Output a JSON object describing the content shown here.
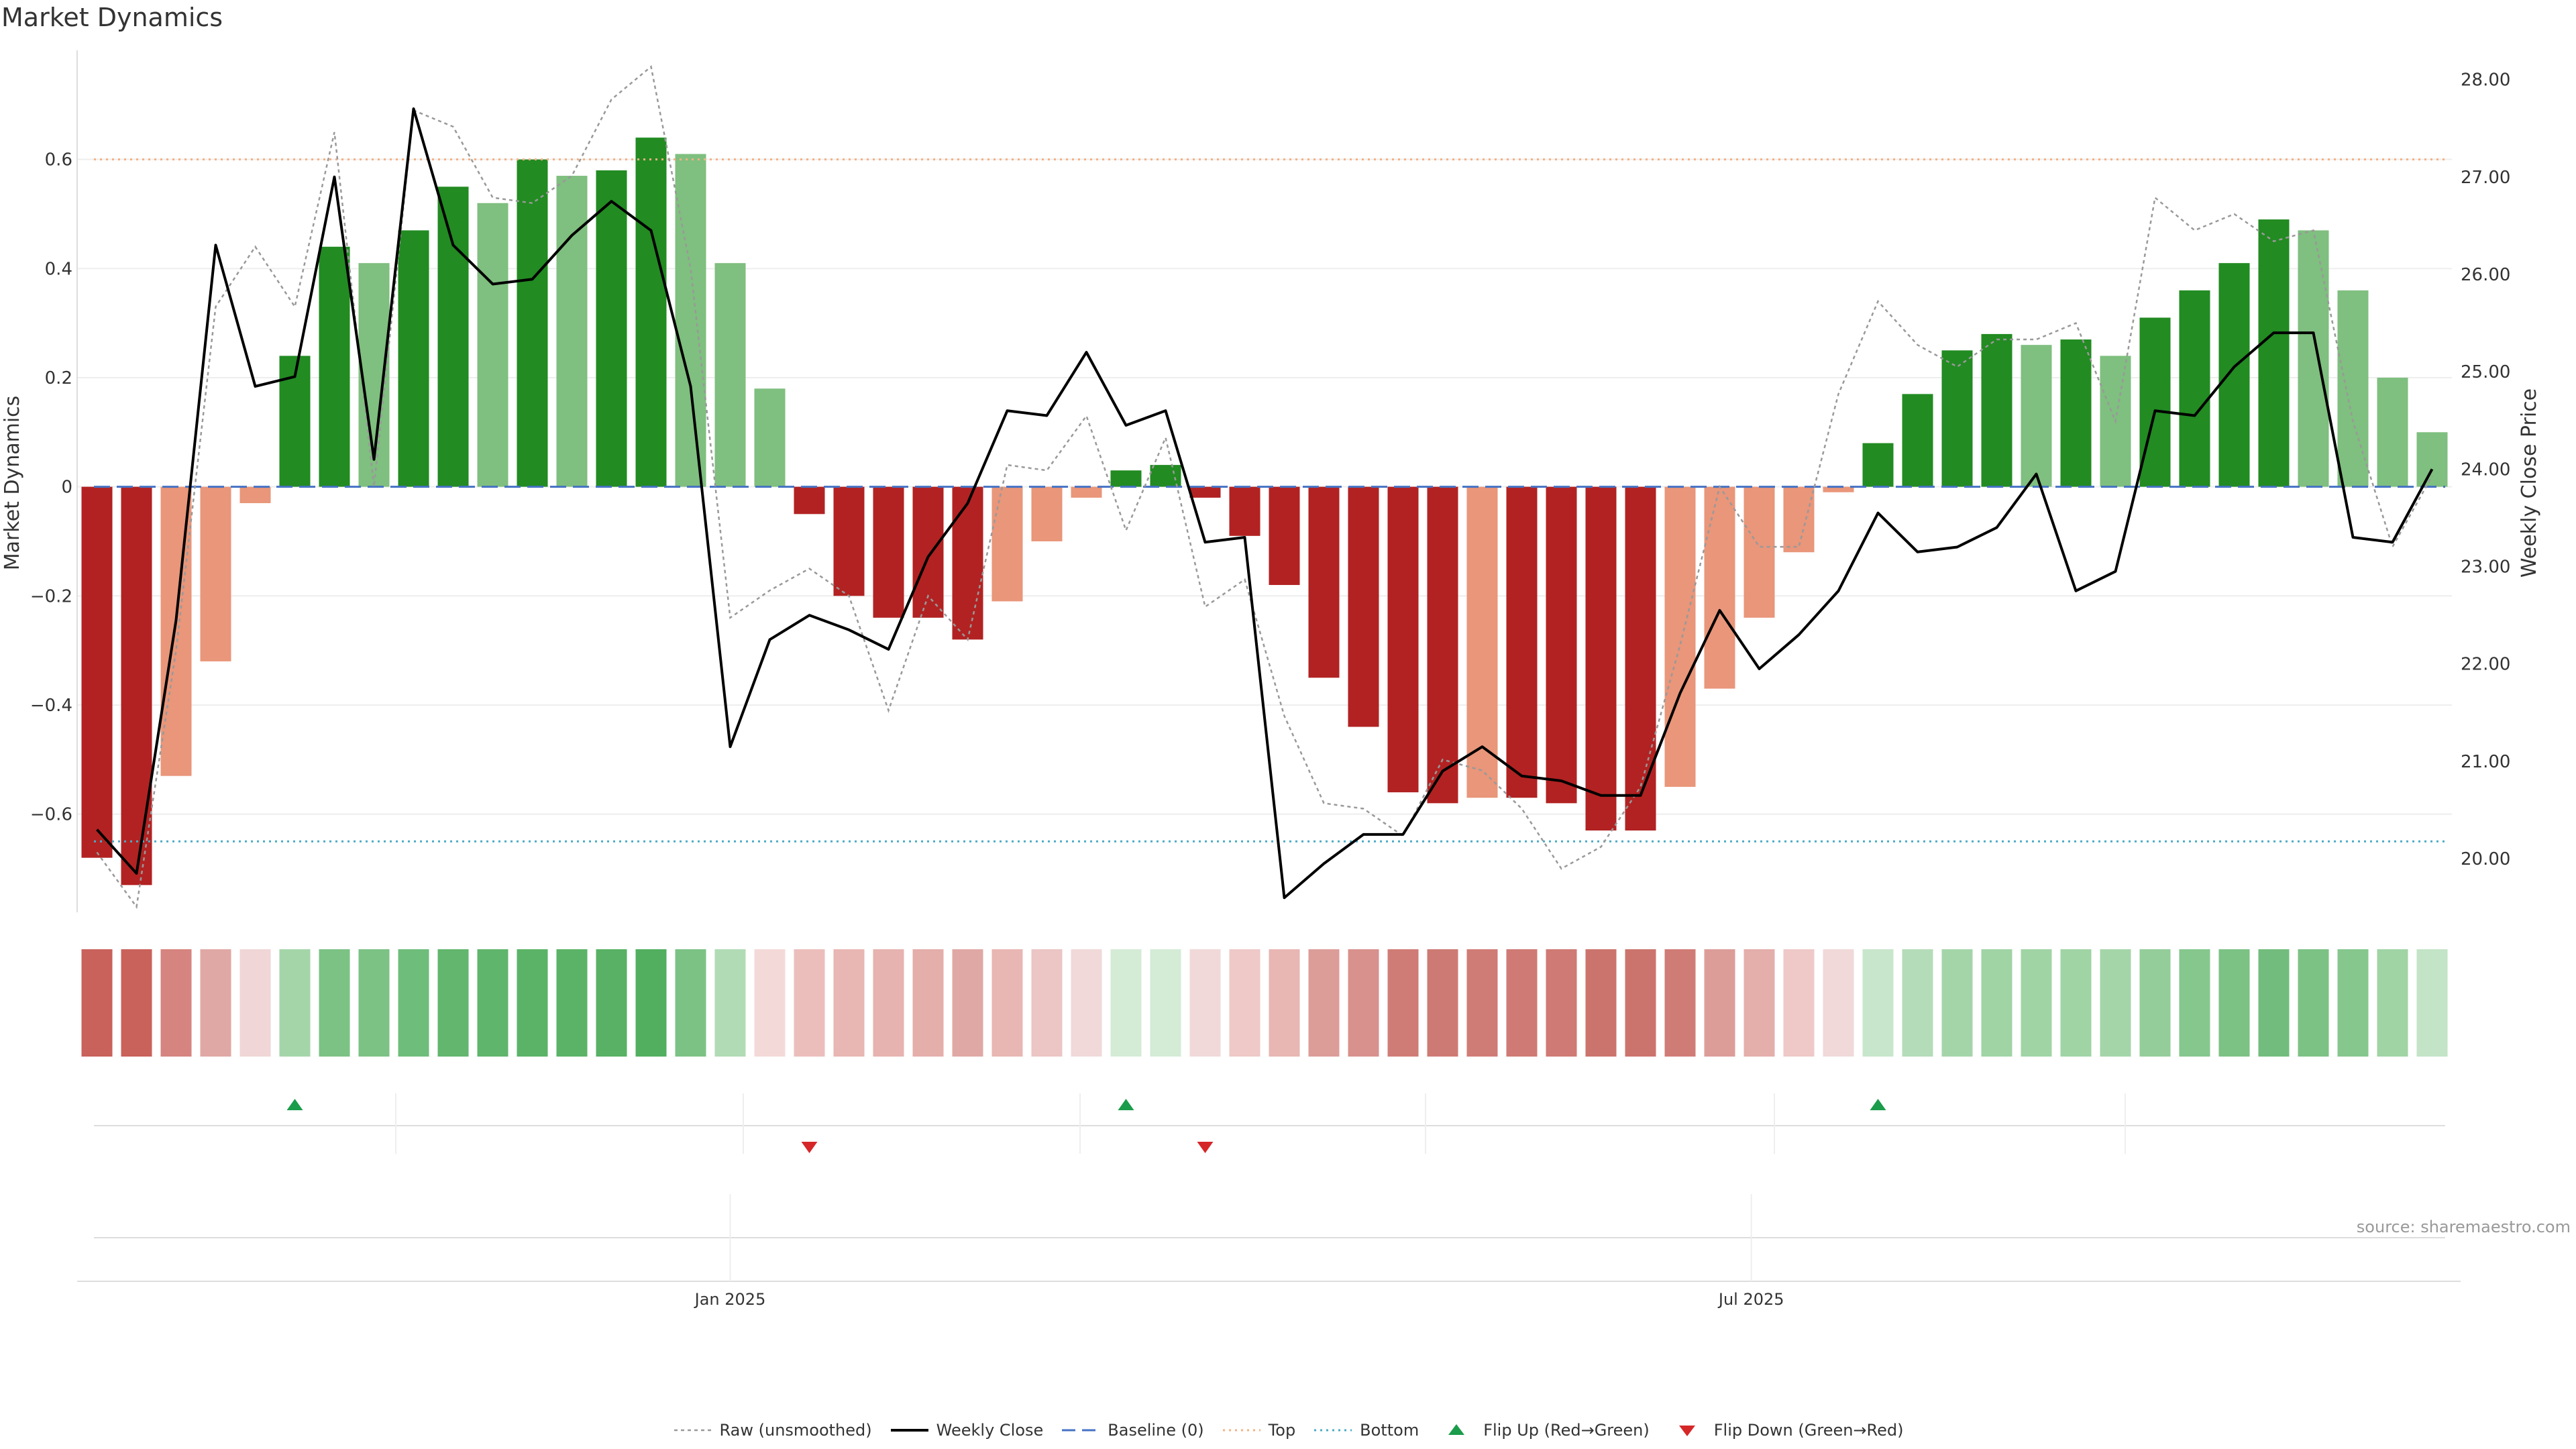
{
  "chart_data": {
    "type": "bar",
    "title": "Market Dynamics",
    "ylabel": "Market Dynamics",
    "y2label": "Weekly Close Price",
    "source": "source: sharemaestro.com",
    "ylim": [
      -0.78,
      0.8
    ],
    "y2lim": [
      19.45,
      28.3
    ],
    "yticks": [
      -0.6,
      -0.4,
      -0.2,
      0,
      0.2,
      0.4,
      0.6
    ],
    "ytick_labels": [
      "−0.6",
      "−0.4",
      "−0.2",
      "0",
      "0.2",
      "0.4",
      "0.6"
    ],
    "y2ticks": [
      20,
      21,
      22,
      23,
      24,
      25,
      26,
      27,
      28
    ],
    "y2tick_labels": [
      "20.00",
      "21.00",
      "22.00",
      "23.00",
      "24.00",
      "25.00",
      "26.00",
      "27.00",
      "28.00"
    ],
    "xtick_labels": [
      {
        "label": "Jan 2025",
        "week": 16.5
      },
      {
        "label": "Jul 2025",
        "week": 42.3
      }
    ],
    "top_level": 0.6,
    "bottom_level": -0.65,
    "baseline": 0,
    "weeks": 60,
    "bar_values": [
      -0.68,
      -0.73,
      -0.53,
      -0.32,
      -0.03,
      0.24,
      0.44,
      0.41,
      0.47,
      0.55,
      0.52,
      0.6,
      0.57,
      0.58,
      0.64,
      0.61,
      0.41,
      0.18,
      -0.05,
      -0.2,
      -0.24,
      -0.24,
      -0.28,
      -0.21,
      -0.1,
      -0.02,
      0.03,
      0.04,
      -0.02,
      -0.09,
      -0.18,
      -0.35,
      -0.44,
      -0.56,
      -0.58,
      -0.57,
      -0.57,
      -0.58,
      -0.63,
      -0.63,
      -0.55,
      -0.37,
      -0.24,
      -0.12,
      -0.01,
      0.08,
      0.17,
      0.25,
      0.28,
      0.26,
      0.27,
      0.24,
      0.31,
      0.36,
      0.41,
      0.49,
      0.47,
      0.36,
      0.2,
      0.1
    ],
    "bar_colors": [
      "#b22222",
      "#b22222",
      "#e9967a",
      "#e9967a",
      "#e9967a",
      "#228b22",
      "#228b22",
      "#7fbf7f",
      "#228b22",
      "#228b22",
      "#7fbf7f",
      "#228b22",
      "#7fbf7f",
      "#228b22",
      "#228b22",
      "#7fbf7f",
      "#7fbf7f",
      "#7fbf7f",
      "#b22222",
      "#b22222",
      "#b22222",
      "#b22222",
      "#b22222",
      "#e9967a",
      "#e9967a",
      "#e9967a",
      "#228b22",
      "#228b22",
      "#b22222",
      "#b22222",
      "#b22222",
      "#b22222",
      "#b22222",
      "#b22222",
      "#b22222",
      "#e9967a",
      "#b22222",
      "#b22222",
      "#b22222",
      "#b22222",
      "#e9967a",
      "#e9967a",
      "#e9967a",
      "#e9967a",
      "#e9967a",
      "#228b22",
      "#228b22",
      "#228b22",
      "#228b22",
      "#7fbf7f",
      "#228b22",
      "#7fbf7f",
      "#228b22",
      "#228b22",
      "#228b22",
      "#228b22",
      "#7fbf7f",
      "#7fbf7f",
      "#7fbf7f",
      "#7fbf7f"
    ],
    "raw_values": [
      -0.67,
      -0.77,
      -0.3,
      0.33,
      0.44,
      0.33,
      0.65,
      0.0,
      0.69,
      0.66,
      0.53,
      0.52,
      0.57,
      0.71,
      0.77,
      0.4,
      -0.24,
      -0.19,
      -0.15,
      -0.2,
      -0.41,
      -0.2,
      -0.28,
      0.04,
      0.03,
      0.13,
      -0.08,
      0.09,
      -0.22,
      -0.17,
      -0.42,
      -0.58,
      -0.59,
      -0.64,
      -0.5,
      -0.52,
      -0.59,
      -0.7,
      -0.66,
      -0.55,
      -0.29,
      0.0,
      -0.11,
      -0.11,
      0.17,
      0.34,
      0.26,
      0.22,
      0.27,
      0.27,
      0.3,
      0.12,
      0.53,
      0.47,
      0.5,
      0.45,
      0.47,
      0.12,
      -0.11,
      0.02
    ],
    "weekly_close": [
      20.3,
      19.85,
      22.45,
      26.3,
      24.85,
      24.95,
      27.0,
      24.1,
      27.7,
      26.3,
      25.9,
      25.95,
      26.4,
      26.75,
      26.45,
      24.85,
      21.15,
      22.25,
      22.5,
      22.35,
      22.15,
      23.1,
      23.65,
      24.6,
      24.55,
      25.2,
      24.45,
      24.6,
      23.25,
      23.3,
      19.6,
      19.95,
      20.25,
      20.25,
      20.9,
      21.15,
      20.85,
      20.8,
      20.65,
      20.65,
      21.7,
      22.55,
      21.95,
      22.3,
      22.75,
      23.55,
      23.15,
      23.2,
      23.4,
      23.95,
      22.75,
      22.95,
      24.6,
      24.55,
      25.05,
      25.4,
      25.4,
      23.3,
      23.25,
      24.0
    ],
    "heat_colors": [
      "#c9625b",
      "#c9625b",
      "#d6847f",
      "#e0a8a4",
      "#f0d6d6",
      "#a4d5a9",
      "#7cc285",
      "#7cc285",
      "#6fbd7b",
      "#62b66e",
      "#60b56c",
      "#5bb368",
      "#5bb368",
      "#58b165",
      "#52af60",
      "#7cc285",
      "#b1dbb5",
      "#f4d9d9",
      "#ebbebc",
      "#e8b6b3",
      "#e6b3b0",
      "#e4aeab",
      "#e0a8a4",
      "#e8b6b3",
      "#ebc6c4",
      "#f1d9d9",
      "#d4ebd6",
      "#d4ebd6",
      "#f1d9d9",
      "#eec9c7",
      "#e8b6b3",
      "#dc9d99",
      "#d8918d",
      "#d07c76",
      "#ce7a74",
      "#d07c76",
      "#cf7a74",
      "#cf7a74",
      "#cb746d",
      "#cb746d",
      "#d07c76",
      "#dc9d99",
      "#e4aeab",
      "#eec9c7",
      "#f1d9d9",
      "#c8e6cb",
      "#b4dcb8",
      "#a4d5a9",
      "#a0d4a5",
      "#a0d4a5",
      "#a0d4a5",
      "#a4d5a9",
      "#94cd9a",
      "#86c78e",
      "#7cc285",
      "#72bd7d",
      "#7cc285",
      "#86c78e",
      "#a0d4a5",
      "#c3e4c6"
    ],
    "flip_up_weeks": [
      5,
      26,
      45
    ],
    "flip_down_weeks": [
      18,
      28
    ],
    "legend": [
      {
        "label": "Raw (unsmoothed)",
        "kind": "raw"
      },
      {
        "label": "Weekly Close",
        "kind": "close"
      },
      {
        "label": "Baseline (0)",
        "kind": "baseline"
      },
      {
        "label": "Top",
        "kind": "top"
      },
      {
        "label": "Bottom",
        "kind": "bottom"
      },
      {
        "label": "Flip Up (Red→Green)",
        "kind": "flipup"
      },
      {
        "label": "Flip Down (Green→Red)",
        "kind": "flipdown"
      }
    ],
    "colors": {
      "strong_red": "#b22222",
      "light_red": "#e9967a",
      "strong_green": "#228b22",
      "light_green": "#7fbf7f",
      "close_line": "#000000",
      "raw_line": "#999999",
      "baseline": "#4472c4",
      "top": "#f4b183",
      "bottom": "#4bacc6",
      "flip_up": "#1a9c4a",
      "flip_down": "#d62728"
    }
  }
}
